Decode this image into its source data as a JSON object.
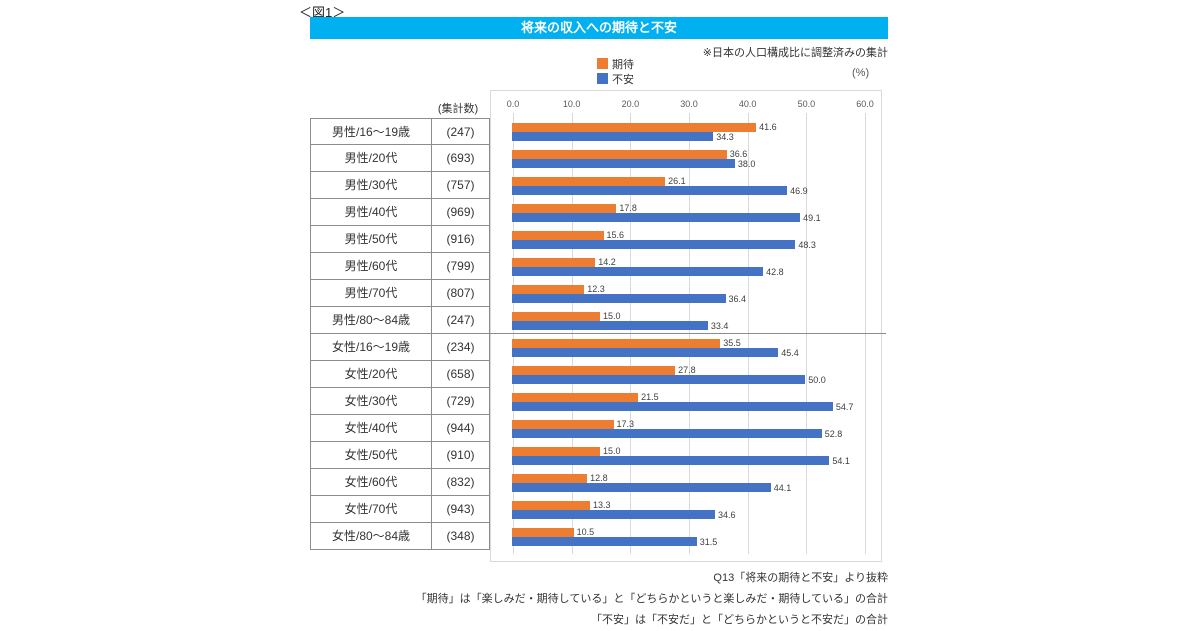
{
  "figure": {
    "label": "＜図1＞",
    "title": "将来の収入への期待と不安",
    "note": "※日本の人口構成比に調整済みの集計",
    "unit": "(%)",
    "count_header": "(集計数)"
  },
  "legend": {
    "expectation": "期待",
    "anxiety": "不安"
  },
  "footnotes": [
    "Q13「将来の期待と不安」より抜粋",
    "「期待」は「楽しみだ・期待している」と「どちらかというと楽しみだ・期待している」の合計",
    "「不安」は「不安だ」と「どちらかというと不安だ」の合計"
  ],
  "chart_data": {
    "type": "bar",
    "orientation": "horizontal",
    "title": "将来の収入への期待と不安",
    "xlabel": "(%)",
    "xlim": [
      0,
      60
    ],
    "x_ticks": [
      "0.0",
      "10.0",
      "20.0",
      "30.0",
      "40.0",
      "50.0",
      "60.0"
    ],
    "grid": true,
    "legend_position": "top",
    "series": [
      {
        "name": "期待",
        "color": "#ED7D31"
      },
      {
        "name": "不安",
        "color": "#4472C4"
      }
    ],
    "group_break_after_index": 7,
    "rows": [
      {
        "label": "男性/16〜19歳",
        "count": "(247)",
        "values": [
          41.6,
          34.3
        ]
      },
      {
        "label": "男性/20代",
        "count": "(693)",
        "values": [
          36.6,
          38.0
        ]
      },
      {
        "label": "男性/30代",
        "count": "(757)",
        "values": [
          26.1,
          46.9
        ]
      },
      {
        "label": "男性/40代",
        "count": "(969)",
        "values": [
          17.8,
          49.1
        ]
      },
      {
        "label": "男性/50代",
        "count": "(916)",
        "values": [
          15.6,
          48.3
        ]
      },
      {
        "label": "男性/60代",
        "count": "(799)",
        "values": [
          14.2,
          42.8
        ]
      },
      {
        "label": "男性/70代",
        "count": "(807)",
        "values": [
          12.3,
          36.4
        ]
      },
      {
        "label": "男性/80〜84歳",
        "count": "(247)",
        "values": [
          15.0,
          33.4
        ]
      },
      {
        "label": "女性/16〜19歳",
        "count": "(234)",
        "values": [
          35.5,
          45.4
        ]
      },
      {
        "label": "女性/20代",
        "count": "(658)",
        "values": [
          27.8,
          50.0
        ]
      },
      {
        "label": "女性/30代",
        "count": "(729)",
        "values": [
          21.5,
          54.7
        ]
      },
      {
        "label": "女性/40代",
        "count": "(944)",
        "values": [
          17.3,
          52.8
        ]
      },
      {
        "label": "女性/50代",
        "count": "(910)",
        "values": [
          15.0,
          54.1
        ]
      },
      {
        "label": "女性/60代",
        "count": "(832)",
        "values": [
          12.8,
          44.1
        ]
      },
      {
        "label": "女性/70代",
        "count": "(943)",
        "values": [
          13.3,
          34.6
        ]
      },
      {
        "label": "女性/80〜84歳",
        "count": "(348)",
        "values": [
          10.5,
          31.5
        ]
      }
    ]
  }
}
